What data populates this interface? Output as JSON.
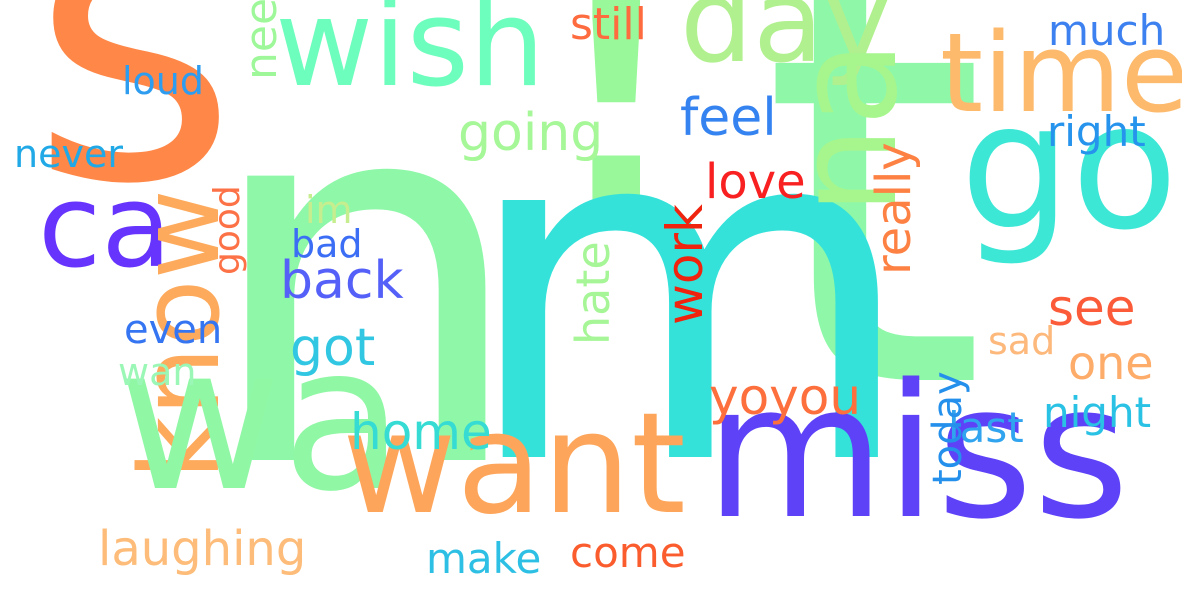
{
  "words": [
    {
      "text": "s",
      "color": "#ff8748",
      "rotate": false
    },
    {
      "text": "n",
      "color": "#8ef8a8",
      "rotate": false
    },
    {
      "text": "t",
      "color": "#8ef8a8",
      "rotate": false
    },
    {
      "text": "!",
      "color": "#98f89a",
      "rotate": false
    },
    {
      "text": "m",
      "color": "#34e2da",
      "rotate": false
    },
    {
      "text": "wish",
      "color": "#6dfdbc",
      "rotate": false
    },
    {
      "text": "day",
      "color": "#b1f08e",
      "rotate": false
    },
    {
      "text": "time",
      "color": "#fdba6c",
      "rotate": false
    },
    {
      "text": "go",
      "color": "#3ce7d6",
      "rotate": false
    },
    {
      "text": "na",
      "color": "#a6f68d",
      "rotate": true
    },
    {
      "text": "ca",
      "color": "#6634fd",
      "rotate": false
    },
    {
      "text": "know",
      "color": "#fdaa5c",
      "rotate": true
    },
    {
      "text": "wa",
      "color": "#90f7a5",
      "rotate": false
    },
    {
      "text": "want",
      "color": "#fda55a",
      "rotate": false
    },
    {
      "text": "miss",
      "color": "#5d42f8",
      "rotate": false
    },
    {
      "text": "still",
      "color": "#fd6b3e",
      "rotate": false
    },
    {
      "text": "much",
      "color": "#3d81f0",
      "rotate": false
    },
    {
      "text": "need",
      "color": "#9ef89a",
      "rotate": true
    },
    {
      "text": "loud",
      "color": "#2f9def",
      "rotate": false
    },
    {
      "text": "feel",
      "color": "#3583f1",
      "rotate": false
    },
    {
      "text": "going",
      "color": "#a6f797",
      "rotate": false
    },
    {
      "text": "right",
      "color": "#2693ec",
      "rotate": false
    },
    {
      "text": "never",
      "color": "#20a9e6",
      "rotate": false
    },
    {
      "text": "love",
      "color": "#f82020",
      "rotate": false
    },
    {
      "text": "im",
      "color": "#c6ed8e",
      "rotate": false
    },
    {
      "text": "good",
      "color": "#fc7145",
      "rotate": true
    },
    {
      "text": "bad",
      "color": "#3b6ef5",
      "rotate": false
    },
    {
      "text": "back",
      "color": "#5460f8",
      "rotate": false
    },
    {
      "text": "really",
      "color": "#fd8143",
      "rotate": true
    },
    {
      "text": "see",
      "color": "#fb5b39",
      "rotate": false
    },
    {
      "text": "even",
      "color": "#3575f2",
      "rotate": false
    },
    {
      "text": "got",
      "color": "#31c7e2",
      "rotate": false
    },
    {
      "text": "hate",
      "color": "#a6f697",
      "rotate": true
    },
    {
      "text": "work",
      "color": "#f0240e",
      "rotate": true
    },
    {
      "text": "sad",
      "color": "#fdb87c",
      "rotate": false
    },
    {
      "text": "one",
      "color": "#fdac6a",
      "rotate": false
    },
    {
      "text": "wan",
      "color": "#9bf7b5",
      "rotate": false
    },
    {
      "text": "yoyou",
      "color": "#fd6f3c",
      "rotate": false
    },
    {
      "text": "home",
      "color": "#36dcd4",
      "rotate": false
    },
    {
      "text": "night",
      "color": "#29c1e4",
      "rotate": false
    },
    {
      "text": "last",
      "color": "#30a4ee",
      "rotate": false
    },
    {
      "text": "today",
      "color": "#2590ec",
      "rotate": true
    },
    {
      "text": "laughing",
      "color": "#fdbc79",
      "rotate": false
    },
    {
      "text": "make",
      "color": "#2dc0e4",
      "rotate": false
    },
    {
      "text": "come",
      "color": "#fb5c2e",
      "rotate": false
    }
  ]
}
